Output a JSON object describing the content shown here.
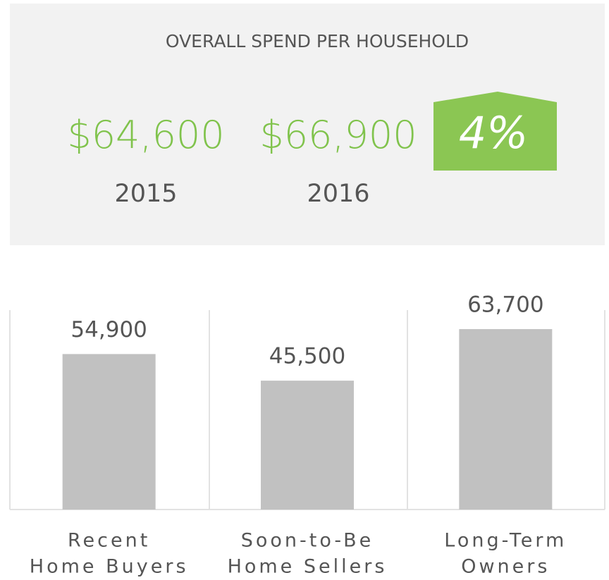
{
  "summary": {
    "title": "OVERALL SPEND PER HOUSEHOLD",
    "items": [
      {
        "value": "$64,600",
        "label": "2015"
      },
      {
        "value": "$66,900",
        "label": "2016"
      }
    ],
    "change": "4%"
  },
  "chart_data": {
    "type": "bar",
    "categories": [
      [
        "Recent",
        "Home Buyers"
      ],
      [
        "Soon-to-Be",
        "Home Sellers"
      ],
      [
        "Long-Term",
        "Owners"
      ]
    ],
    "values": [
      54900,
      45500,
      63700
    ],
    "value_labels": [
      "54,900",
      "45,500",
      "63,700"
    ],
    "color": "#c1c1c1"
  }
}
